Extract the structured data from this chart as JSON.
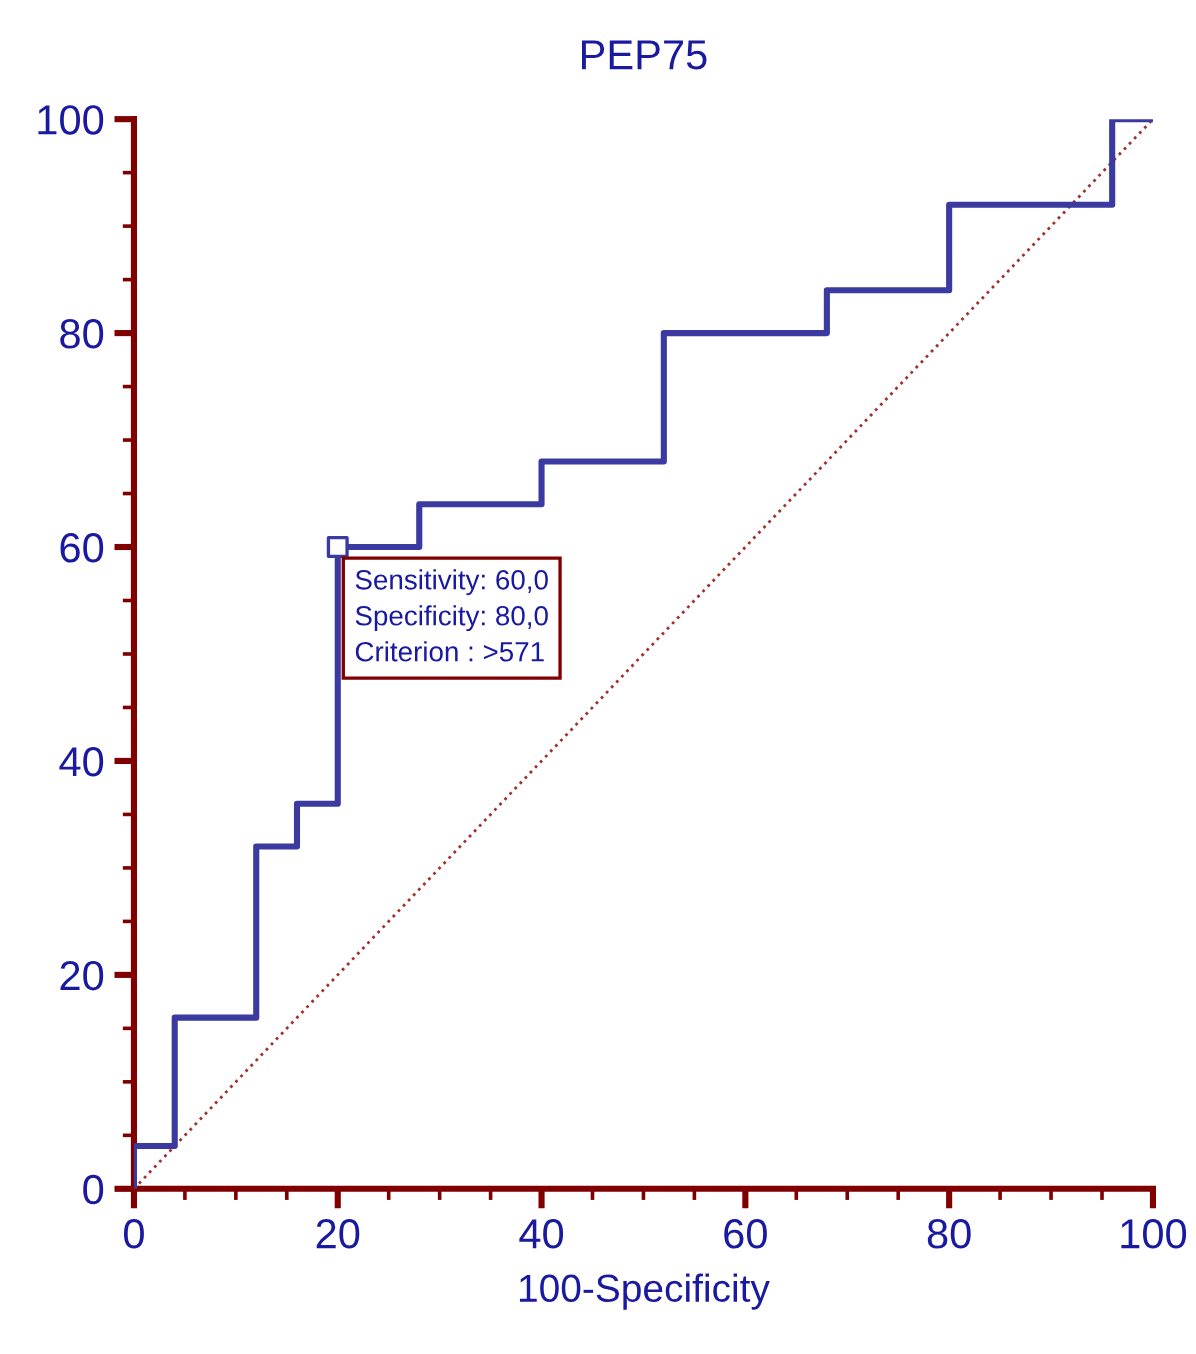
{
  "chart_data": {
    "type": "step",
    "title": "PEP75",
    "xlabel": "100-Specificity",
    "xlim": [
      0,
      100
    ],
    "ylim": [
      0,
      100
    ],
    "xticks": [
      0,
      20,
      40,
      60,
      80,
      100
    ],
    "yticks": [
      0,
      20,
      40,
      60,
      80,
      100
    ],
    "series": [
      {
        "color": "#3a3aa0",
        "x": [
          0,
          0,
          4,
          12,
          16,
          20,
          28,
          40,
          52,
          68,
          80,
          96,
          100
        ],
        "values": [
          0,
          4,
          16,
          32,
          36,
          60,
          64,
          68,
          80,
          84,
          92,
          100,
          100
        ],
        "line_style": "solid",
        "marker": "none"
      },
      {
        "type": "line",
        "color": "#a03030",
        "x": [
          0,
          100
        ],
        "values": [
          0,
          100
        ],
        "line_style": "dotted",
        "marker": "none"
      },
      {
        "type": "scatter",
        "color": "#3a3aa0",
        "x": [
          20
        ],
        "values": [
          60
        ],
        "marker": "square"
      }
    ],
    "annotations": [
      {
        "text": "Sensitivity: 60,0\nSpecificity: 80,0\nCriterion : >571",
        "x": 20,
        "y": 60
      }
    ],
    "grid": false,
    "legend": false
  }
}
